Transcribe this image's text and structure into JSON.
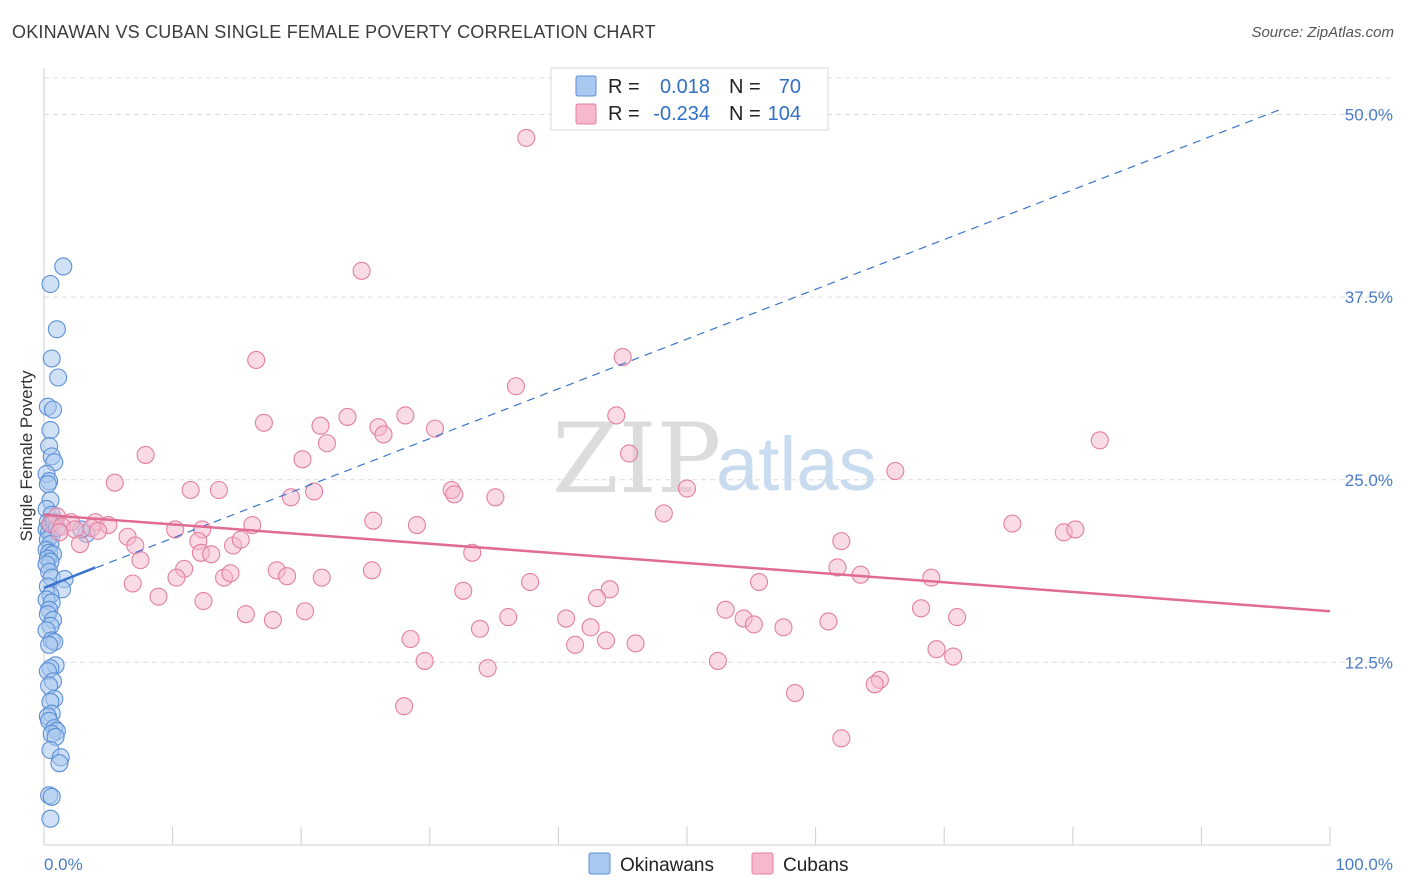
{
  "header": {
    "title": "OKINAWAN VS CUBAN SINGLE FEMALE POVERTY CORRELATION CHART",
    "source": "Source: ZipAtlas.com"
  },
  "watermark": {
    "zip": "ZIP",
    "atlas": "atlas"
  },
  "legend": {
    "rows": [
      {
        "r_label": "R =",
        "r_value": "0.018",
        "n_label": "N =",
        "n_value": "70",
        "color": "#a9c8ef"
      },
      {
        "r_label": "R =",
        "r_value": "-0.234",
        "n_label": "N =",
        "n_value": "104",
        "color": "#f6b8cb"
      }
    ]
  },
  "bottom_legend": {
    "items": [
      "Okinawans",
      "Cubans"
    ]
  },
  "colors": {
    "okinawan_fill": "#a9c8ef",
    "okinawan_stroke": "#5b8fd6",
    "okinawan_line": "#3a74cc",
    "cuban_fill": "#f6b8cb",
    "cuban_stroke": "#e37fa0",
    "cuban_line": "#e06b93",
    "axis_tick_text": "#4a7bc8"
  },
  "chart_data": {
    "type": "scatter",
    "title": "OKINAWAN VS CUBAN SINGLE FEMALE POVERTY CORRELATION CHART",
    "xlabel": "",
    "ylabel": "Single Female Poverty",
    "xlim": [
      0,
      100
    ],
    "ylim": [
      0,
      52.5
    ],
    "x_tick_labels": [
      "0.0%",
      "100.0%"
    ],
    "y_ticks": [
      12.5,
      25.0,
      37.5,
      50.0
    ],
    "y_tick_labels": [
      "12.5%",
      "25.0%",
      "37.5%",
      "50.0%"
    ],
    "grid": true,
    "series": [
      {
        "name": "Okinawans",
        "r": 0.018,
        "n": 70,
        "trend_solid": [
          [
            0,
            17.6
          ],
          [
            4.0,
            19.0
          ]
        ],
        "trend_dashed": [
          [
            0,
            17.6
          ],
          [
            96,
            50.3
          ]
        ],
        "points": [
          [
            1.5,
            39.6
          ],
          [
            0.5,
            38.4
          ],
          [
            1.0,
            35.3
          ],
          [
            0.6,
            33.3
          ],
          [
            1.1,
            32.0
          ],
          [
            0.3,
            30.0
          ],
          [
            0.7,
            29.8
          ],
          [
            0.5,
            28.4
          ],
          [
            0.4,
            27.3
          ],
          [
            0.6,
            26.6
          ],
          [
            0.8,
            26.2
          ],
          [
            0.2,
            25.4
          ],
          [
            0.4,
            24.9
          ],
          [
            0.3,
            24.7
          ],
          [
            0.5,
            23.6
          ],
          [
            0.2,
            23.0
          ],
          [
            0.6,
            22.6
          ],
          [
            0.3,
            22.1
          ],
          [
            0.5,
            21.9
          ],
          [
            0.2,
            21.6
          ],
          [
            0.4,
            21.4
          ],
          [
            0.6,
            21.2
          ],
          [
            0.3,
            20.9
          ],
          [
            0.5,
            20.6
          ],
          [
            0.2,
            20.2
          ],
          [
            0.4,
            20.0
          ],
          [
            0.7,
            19.9
          ],
          [
            0.3,
            19.6
          ],
          [
            0.5,
            19.4
          ],
          [
            0.2,
            19.2
          ],
          [
            0.4,
            18.7
          ],
          [
            0.6,
            18.3
          ],
          [
            1.6,
            18.2
          ],
          [
            0.3,
            17.7
          ],
          [
            1.4,
            17.5
          ],
          [
            0.5,
            17.1
          ],
          [
            0.2,
            16.8
          ],
          [
            0.6,
            16.6
          ],
          [
            0.4,
            16.1
          ],
          [
            0.3,
            15.8
          ],
          [
            0.7,
            15.4
          ],
          [
            0.5,
            15.0
          ],
          [
            0.2,
            14.7
          ],
          [
            0.6,
            14.0
          ],
          [
            0.8,
            13.9
          ],
          [
            0.4,
            13.7
          ],
          [
            0.9,
            12.3
          ],
          [
            0.5,
            12.1
          ],
          [
            0.3,
            11.9
          ],
          [
            0.7,
            11.2
          ],
          [
            0.4,
            10.9
          ],
          [
            0.8,
            10.0
          ],
          [
            0.5,
            9.8
          ],
          [
            0.6,
            9.0
          ],
          [
            0.3,
            8.8
          ],
          [
            0.4,
            8.5
          ],
          [
            0.8,
            8.0
          ],
          [
            1.0,
            7.8
          ],
          [
            0.6,
            7.6
          ],
          [
            0.9,
            7.4
          ],
          [
            0.5,
            6.5
          ],
          [
            1.3,
            6.0
          ],
          [
            1.2,
            5.6
          ],
          [
            0.4,
            3.4
          ],
          [
            0.6,
            3.3
          ],
          [
            0.5,
            1.8
          ],
          [
            3.3,
            21.3
          ],
          [
            2.9,
            21.6
          ],
          [
            0.8,
            22.1
          ],
          [
            1.0,
            21.7
          ]
        ]
      },
      {
        "name": "Cubans",
        "r": -0.234,
        "n": 104,
        "trend": [
          [
            0,
            22.6
          ],
          [
            100,
            16.0
          ]
        ],
        "points": [
          [
            37.5,
            48.4
          ],
          [
            24.7,
            39.3
          ],
          [
            16.5,
            33.2
          ],
          [
            45.0,
            33.4
          ],
          [
            36.7,
            31.4
          ],
          [
            44.5,
            29.4
          ],
          [
            23.6,
            29.3
          ],
          [
            28.1,
            29.4
          ],
          [
            17.1,
            28.9
          ],
          [
            21.5,
            28.7
          ],
          [
            26.0,
            28.6
          ],
          [
            30.4,
            28.5
          ],
          [
            26.4,
            28.1
          ],
          [
            22.0,
            27.5
          ],
          [
            82.1,
            27.7
          ],
          [
            7.9,
            26.7
          ],
          [
            45.5,
            26.8
          ],
          [
            20.1,
            26.4
          ],
          [
            66.2,
            25.6
          ],
          [
            5.5,
            24.8
          ],
          [
            11.4,
            24.3
          ],
          [
            13.6,
            24.3
          ],
          [
            50.0,
            24.4
          ],
          [
            31.7,
            24.3
          ],
          [
            31.9,
            24.0
          ],
          [
            21.0,
            24.2
          ],
          [
            19.2,
            23.8
          ],
          [
            35.1,
            23.8
          ],
          [
            1.0,
            22.5
          ],
          [
            2.1,
            22.1
          ],
          [
            4.0,
            22.1
          ],
          [
            5.0,
            21.9
          ],
          [
            0.5,
            22.0
          ],
          [
            1.4,
            21.8
          ],
          [
            2.4,
            21.6
          ],
          [
            3.7,
            21.7
          ],
          [
            4.2,
            21.5
          ],
          [
            1.2,
            21.4
          ],
          [
            25.6,
            22.2
          ],
          [
            16.2,
            21.9
          ],
          [
            29.0,
            21.9
          ],
          [
            48.2,
            22.7
          ],
          [
            75.3,
            22.0
          ],
          [
            79.3,
            21.4
          ],
          [
            80.2,
            21.6
          ],
          [
            10.2,
            21.6
          ],
          [
            12.3,
            21.6
          ],
          [
            6.5,
            21.1
          ],
          [
            2.8,
            20.6
          ],
          [
            7.1,
            20.5
          ],
          [
            14.7,
            20.5
          ],
          [
            15.3,
            20.9
          ],
          [
            12.0,
            20.8
          ],
          [
            33.3,
            20.0
          ],
          [
            12.2,
            20.0
          ],
          [
            13.0,
            19.9
          ],
          [
            62.0,
            20.8
          ],
          [
            7.5,
            19.5
          ],
          [
            10.9,
            18.9
          ],
          [
            6.9,
            17.9
          ],
          [
            10.3,
            18.3
          ],
          [
            14.0,
            18.3
          ],
          [
            14.5,
            18.6
          ],
          [
            18.1,
            18.8
          ],
          [
            18.9,
            18.4
          ],
          [
            21.6,
            18.3
          ],
          [
            25.5,
            18.8
          ],
          [
            61.7,
            19.0
          ],
          [
            63.5,
            18.5
          ],
          [
            69.0,
            18.3
          ],
          [
            55.6,
            18.0
          ],
          [
            37.8,
            18.0
          ],
          [
            32.6,
            17.4
          ],
          [
            44.0,
            17.5
          ],
          [
            43.0,
            16.9
          ],
          [
            8.9,
            17.0
          ],
          [
            12.4,
            16.7
          ],
          [
            15.7,
            15.8
          ],
          [
            17.8,
            15.4
          ],
          [
            20.3,
            16.0
          ],
          [
            36.1,
            15.6
          ],
          [
            40.6,
            15.5
          ],
          [
            53.0,
            16.1
          ],
          [
            54.4,
            15.5
          ],
          [
            55.2,
            15.1
          ],
          [
            57.5,
            14.9
          ],
          [
            61.0,
            15.3
          ],
          [
            68.2,
            16.2
          ],
          [
            71.0,
            15.6
          ],
          [
            42.5,
            14.9
          ],
          [
            33.9,
            14.8
          ],
          [
            28.5,
            14.1
          ],
          [
            41.3,
            13.7
          ],
          [
            43.7,
            14.0
          ],
          [
            46.0,
            13.8
          ],
          [
            69.4,
            13.4
          ],
          [
            70.7,
            12.9
          ],
          [
            29.6,
            12.6
          ],
          [
            34.5,
            12.1
          ],
          [
            52.4,
            12.6
          ],
          [
            65.0,
            11.3
          ],
          [
            64.6,
            11.0
          ],
          [
            58.4,
            10.4
          ],
          [
            28.0,
            9.5
          ],
          [
            62.0,
            7.3
          ]
        ]
      }
    ]
  }
}
